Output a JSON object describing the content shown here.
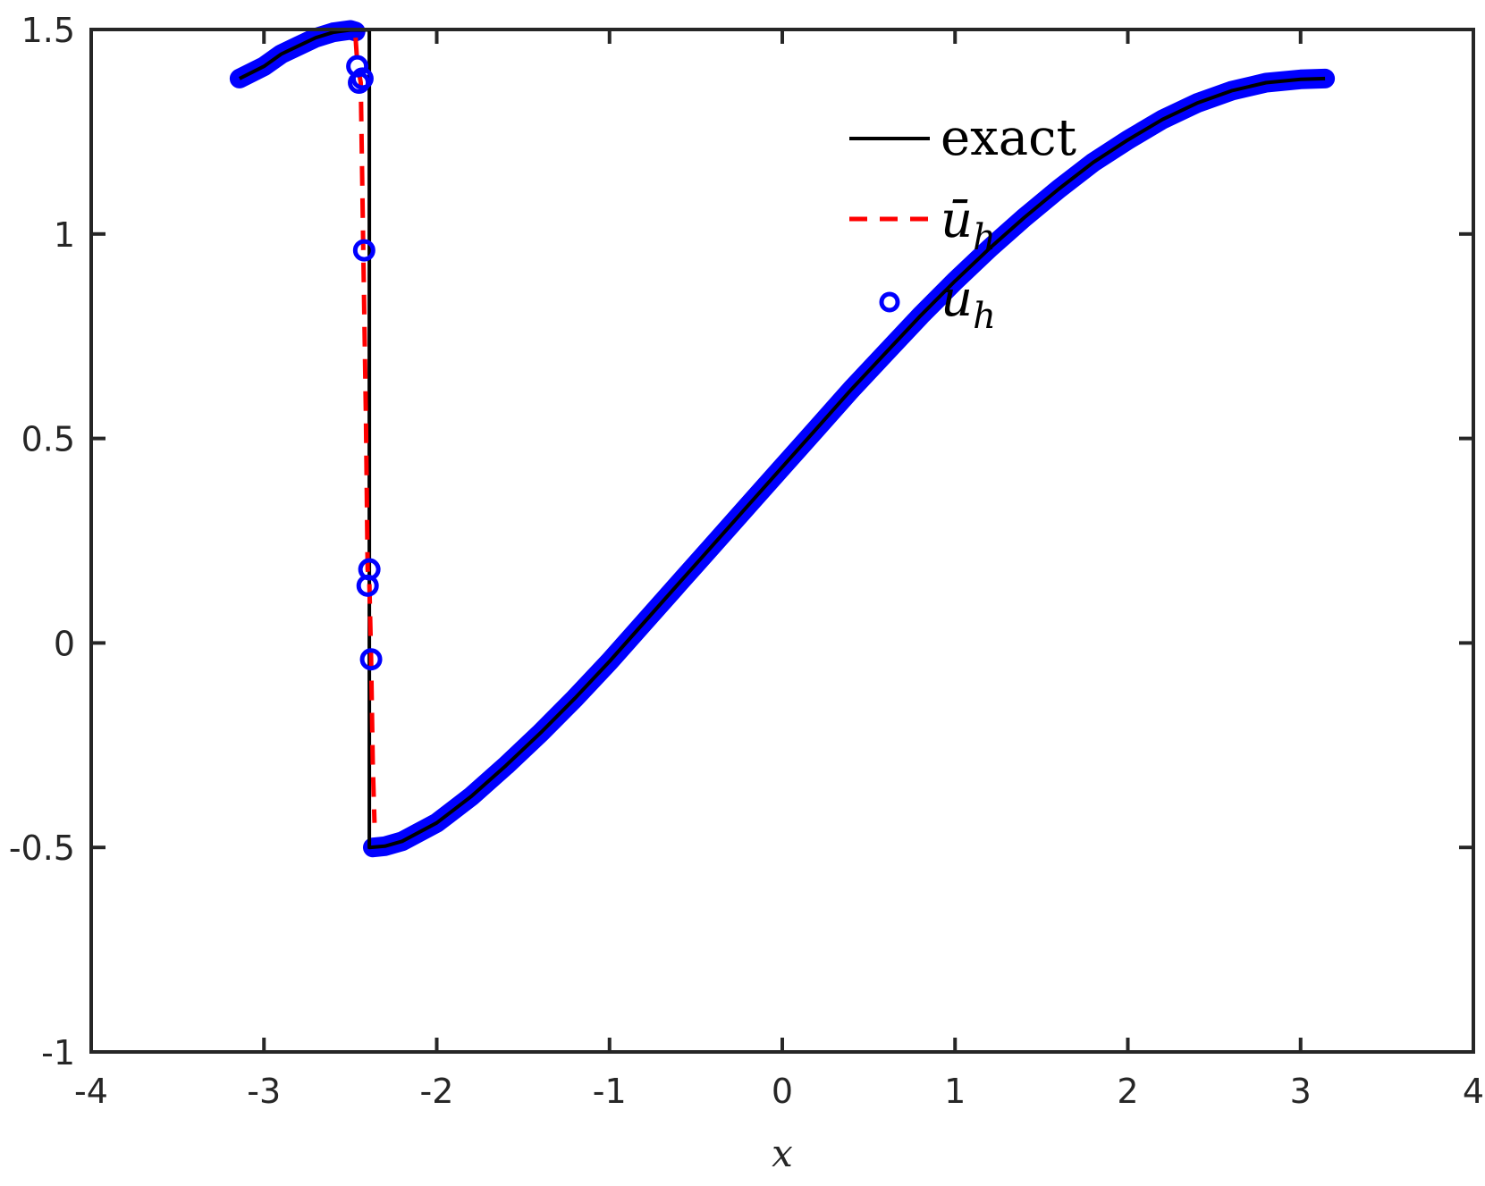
{
  "chart_data": {
    "type": "line",
    "xlabel": "x",
    "ylabel": "",
    "xlim": [
      -4,
      4
    ],
    "ylim": [
      -1,
      1.5
    ],
    "xticks": [
      -4,
      -3,
      -2,
      -1,
      0,
      1,
      2,
      3,
      4
    ],
    "xtick_labels": [
      "-4",
      "-3",
      "-2",
      "-1",
      "0",
      "1",
      "2",
      "3",
      "4"
    ],
    "yticks": [
      -1,
      -0.5,
      0,
      0.5,
      1,
      1.5
    ],
    "ytick_labels": [
      "-1",
      "-0.5",
      "0",
      "0.5",
      "1",
      "1.5"
    ],
    "grid": false,
    "legend_position": "top-right",
    "legend": [
      {
        "label": "exact",
        "base": "",
        "sub": "",
        "style": "solid-line",
        "color": "#000000"
      },
      {
        "label": "",
        "base": "ū",
        "sub": "h",
        "style": "dashed-line",
        "color": "#ff0000"
      },
      {
        "label": "",
        "base": "u",
        "sub": "h",
        "style": "circle-marker",
        "color": "#0000ff"
      }
    ],
    "series": [
      {
        "name": "exact",
        "style": "solid",
        "color": "#000000",
        "points": [
          [
            -3.1416,
            1.38
          ],
          [
            -3.0,
            1.41
          ],
          [
            -2.9,
            1.44
          ],
          [
            -2.8,
            1.46
          ],
          [
            -2.7,
            1.48
          ],
          [
            -2.6,
            1.493
          ],
          [
            -2.5,
            1.499
          ],
          [
            -2.39,
            1.499
          ],
          [
            -2.39,
            -0.5
          ],
          [
            -2.3,
            -0.497
          ],
          [
            -2.2,
            -0.485
          ],
          [
            -2.0,
            -0.44
          ],
          [
            -1.8,
            -0.375
          ],
          [
            -1.6,
            -0.3
          ],
          [
            -1.4,
            -0.22
          ],
          [
            -1.2,
            -0.135
          ],
          [
            -1.0,
            -0.045
          ],
          [
            -0.8,
            0.05
          ],
          [
            -0.6,
            0.145
          ],
          [
            -0.4,
            0.24
          ],
          [
            -0.2,
            0.335
          ],
          [
            0.0,
            0.43
          ],
          [
            0.2,
            0.525
          ],
          [
            0.4,
            0.62
          ],
          [
            0.6,
            0.71
          ],
          [
            0.8,
            0.8
          ],
          [
            1.0,
            0.885
          ],
          [
            1.2,
            0.965
          ],
          [
            1.4,
            1.04
          ],
          [
            1.6,
            1.11
          ],
          [
            1.8,
            1.175
          ],
          [
            2.0,
            1.23
          ],
          [
            2.2,
            1.28
          ],
          [
            2.4,
            1.32
          ],
          [
            2.6,
            1.35
          ],
          [
            2.8,
            1.37
          ],
          [
            3.0,
            1.378
          ],
          [
            3.1416,
            1.38
          ]
        ]
      },
      {
        "name": "ū_h",
        "style": "dashed",
        "color": "#ff0000",
        "points": [
          [
            -2.47,
            1.48
          ],
          [
            -2.46,
            1.42
          ],
          [
            -2.44,
            1.37
          ],
          [
            -2.425,
            0.95
          ],
          [
            -2.41,
            0.55
          ],
          [
            -2.4,
            0.18
          ],
          [
            -2.39,
            0.15
          ],
          [
            -2.38,
            -0.04
          ],
          [
            -2.37,
            -0.3
          ],
          [
            -2.36,
            -0.44
          ]
        ]
      },
      {
        "name": "u_h",
        "style": "markers",
        "color": "#0000ff",
        "curve_points": [
          [
            -3.1416,
            1.38
          ],
          [
            -3.0,
            1.41
          ],
          [
            -2.9,
            1.44
          ],
          [
            -2.8,
            1.46
          ],
          [
            -2.7,
            1.48
          ],
          [
            -2.6,
            1.493
          ],
          [
            -2.5,
            1.499
          ],
          [
            -2.47,
            1.495
          ],
          [
            -2.37,
            -0.5
          ],
          [
            -2.3,
            -0.497
          ],
          [
            -2.2,
            -0.485
          ],
          [
            -2.0,
            -0.44
          ],
          [
            -1.8,
            -0.375
          ],
          [
            -1.6,
            -0.3
          ],
          [
            -1.4,
            -0.22
          ],
          [
            -1.2,
            -0.135
          ],
          [
            -1.0,
            -0.045
          ],
          [
            -0.8,
            0.05
          ],
          [
            -0.6,
            0.145
          ],
          [
            -0.4,
            0.24
          ],
          [
            -0.2,
            0.335
          ],
          [
            0.0,
            0.43
          ],
          [
            0.2,
            0.525
          ],
          [
            0.4,
            0.62
          ],
          [
            0.6,
            0.71
          ],
          [
            0.8,
            0.8
          ],
          [
            1.0,
            0.885
          ],
          [
            1.2,
            0.965
          ],
          [
            1.4,
            1.04
          ],
          [
            1.6,
            1.11
          ],
          [
            1.8,
            1.175
          ],
          [
            2.0,
            1.23
          ],
          [
            2.2,
            1.28
          ],
          [
            2.4,
            1.32
          ],
          [
            2.6,
            1.35
          ],
          [
            2.8,
            1.37
          ],
          [
            3.0,
            1.378
          ],
          [
            3.1416,
            1.38
          ]
        ],
        "isolated_points": [
          [
            -2.46,
            1.41
          ],
          [
            -2.45,
            1.37
          ],
          [
            -2.43,
            1.38
          ],
          [
            -2.42,
            0.96
          ],
          [
            -2.39,
            0.18
          ],
          [
            -2.4,
            0.14
          ],
          [
            -2.38,
            -0.04
          ]
        ]
      }
    ]
  }
}
